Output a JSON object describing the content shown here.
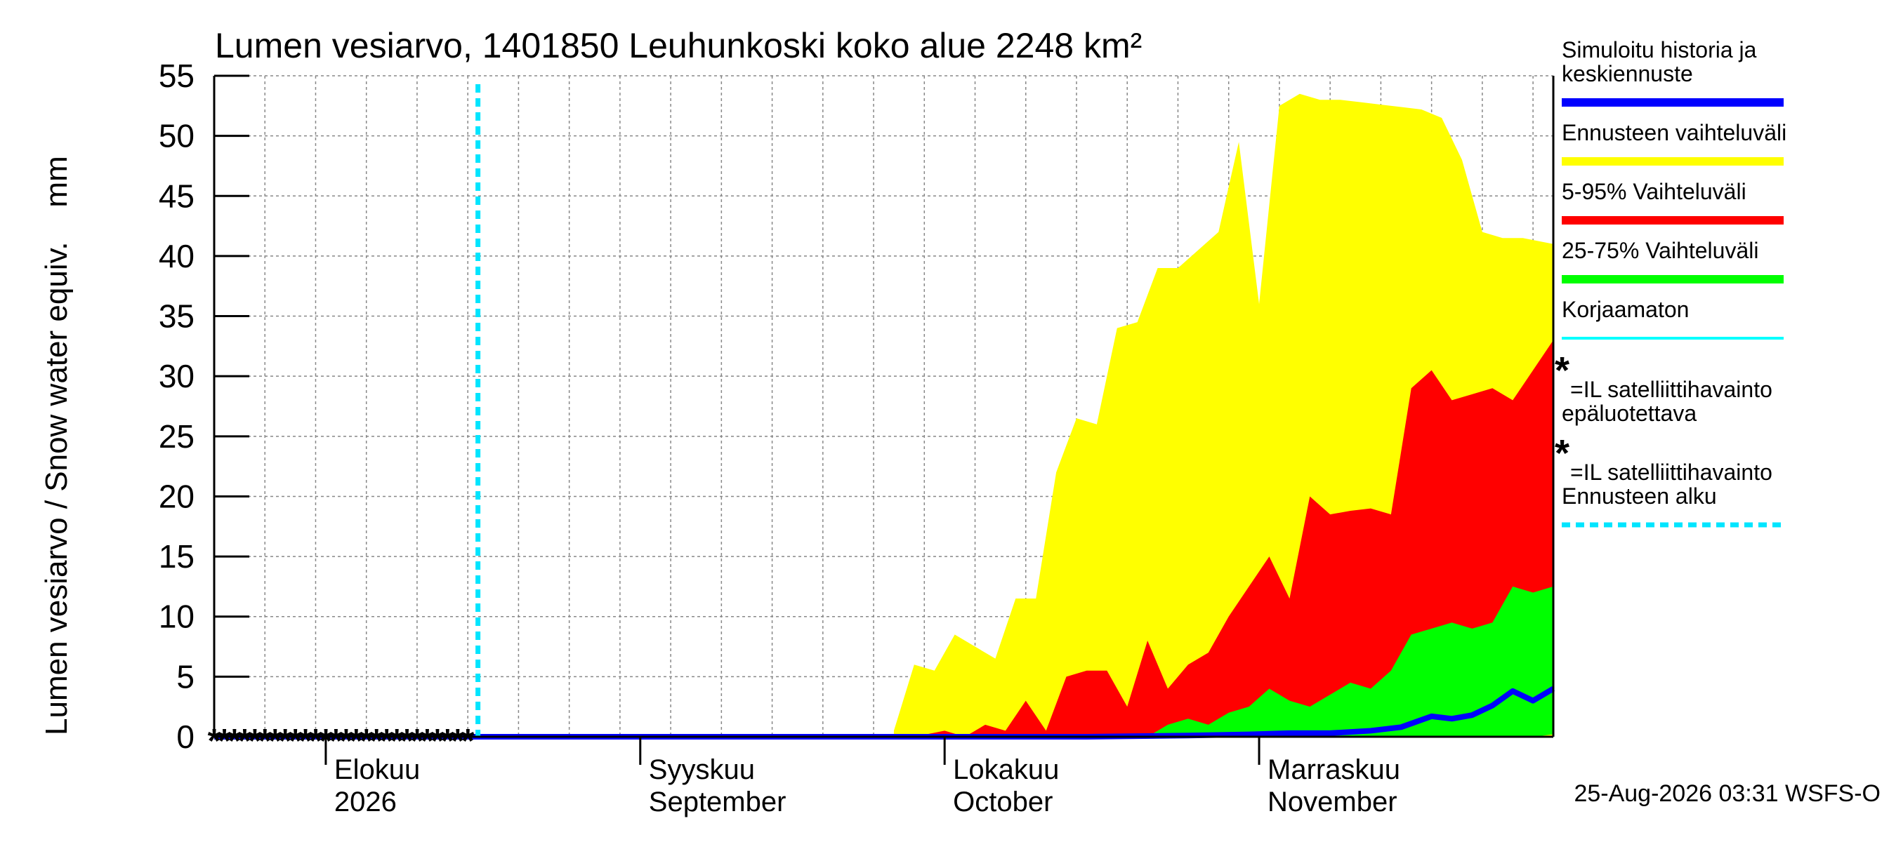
{
  "chart_data": {
    "type": "area",
    "title": "Lumen vesiarvo, 1401850 Leuhunkoski koko alue 2248 km²",
    "ylabel": "Lumen vesiarvo / Snow water equiv.    mm",
    "ylim": [
      0,
      55
    ],
    "yticks": [
      0,
      5,
      10,
      15,
      20,
      25,
      30,
      35,
      40,
      45,
      50,
      55
    ],
    "x_range": [
      "2026-07-21",
      "2026-11-30"
    ],
    "forecast_start": "2026-08-16",
    "grid": true,
    "legend_position": "right",
    "month_labels": [
      {
        "date": "2026-08-01",
        "line1": "Elokuu",
        "line2": "2026"
      },
      {
        "date": "2026-09-01",
        "line1": "Syyskuu",
        "line2": "September"
      },
      {
        "date": "2026-10-01",
        "line1": "Lokakuu",
        "line2": "October"
      },
      {
        "date": "2026-11-01",
        "line1": "Marraskuu",
        "line2": "November"
      }
    ],
    "footer": "25-Aug-2026 03:31 WSFS-O",
    "colors": {
      "history": "#0000ff",
      "range_full": "#ffff00",
      "range_5_95": "#ff0000",
      "range_25_75": "#00ff00",
      "uncorrected": "#00ffff",
      "forecast_start": "#00e5ff",
      "obs_reliable": "#ff0000",
      "obs_unreliable": "#000000"
    },
    "legend": [
      {
        "label1": "Simuloitu historia ja",
        "label2": "keskiennuste",
        "key": "history"
      },
      {
        "label1": "Ennusteen vaihteluväli",
        "key": "range_full"
      },
      {
        "label1": "5-95% Vaihteluväli",
        "key": "range_5_95"
      },
      {
        "label1": "25-75% Vaihteluväli",
        "key": "range_25_75"
      },
      {
        "label1": "Korjaamaton",
        "key": "uncorrected"
      },
      {
        "label1": "=IL satelliittihavainto",
        "key": "obs_reliable",
        "marker": "*"
      },
      {
        "label1": "epäluotettava",
        "key": "text_only"
      },
      {
        "label1": "=IL satelliittihavainto",
        "key": "obs_unreliable",
        "marker": "*"
      },
      {
        "label1": "Ennusteen alku",
        "key": "forecast_start"
      }
    ],
    "range_full": {
      "x": [
        "2026-09-26",
        "2026-09-28",
        "2026-09-30",
        "2026-10-02",
        "2026-10-04",
        "2026-10-06",
        "2026-10-08",
        "2026-10-10",
        "2026-10-12",
        "2026-10-14",
        "2026-10-16",
        "2026-10-18",
        "2026-10-20",
        "2026-10-22",
        "2026-10-24",
        "2026-10-26",
        "2026-10-28",
        "2026-10-30",
        "2026-11-01",
        "2026-11-03",
        "2026-11-05",
        "2026-11-07",
        "2026-11-09",
        "2026-11-11",
        "2026-11-13",
        "2026-11-15",
        "2026-11-17",
        "2026-11-19",
        "2026-11-21",
        "2026-11-23",
        "2026-11-25",
        "2026-11-27",
        "2026-11-30"
      ],
      "high": [
        0.5,
        6,
        5.5,
        8.5,
        7.5,
        6.5,
        11.5,
        11.5,
        22,
        26.5,
        26,
        34,
        34.5,
        39,
        39,
        40.5,
        42,
        49.5,
        36,
        52.5,
        53.5,
        53,
        53,
        52.8,
        52.6,
        52.4,
        52.2,
        51.5,
        48,
        42,
        41.5,
        41.5,
        41
      ],
      "low": [
        0,
        0,
        0,
        0,
        0,
        0,
        0,
        0,
        0,
        0,
        0,
        0,
        0,
        0,
        0,
        0,
        0,
        0,
        0,
        0,
        0,
        0,
        0,
        0,
        0,
        0,
        0,
        0,
        0,
        0,
        0,
        0,
        0
      ]
    },
    "range_5_95": {
      "x": [
        "2026-09-28",
        "2026-10-01",
        "2026-10-03",
        "2026-10-05",
        "2026-10-07",
        "2026-10-09",
        "2026-10-11",
        "2026-10-13",
        "2026-10-15",
        "2026-10-17",
        "2026-10-19",
        "2026-10-21",
        "2026-10-23",
        "2026-10-25",
        "2026-10-27",
        "2026-10-29",
        "2026-10-31",
        "2026-11-02",
        "2026-11-04",
        "2026-11-06",
        "2026-11-08",
        "2026-11-10",
        "2026-11-12",
        "2026-11-14",
        "2026-11-16",
        "2026-11-18",
        "2026-11-20",
        "2026-11-22",
        "2026-11-24",
        "2026-11-26",
        "2026-11-28",
        "2026-11-30"
      ],
      "high": [
        0,
        0.5,
        0,
        1,
        0.5,
        3,
        0.5,
        5,
        5.5,
        5.5,
        2.5,
        8,
        4,
        6,
        7,
        10,
        12.5,
        15,
        11.5,
        20,
        18.5,
        18.8,
        19,
        18.5,
        29,
        30.5,
        28,
        28.5,
        29,
        28,
        30.5,
        33
      ],
      "low": [
        0,
        0,
        0,
        0,
        0,
        0,
        0,
        0,
        0,
        0,
        0,
        0,
        0,
        0,
        0,
        0,
        0,
        0,
        0,
        0,
        0,
        0,
        0,
        0,
        0,
        0,
        0,
        0,
        0,
        0,
        0,
        0.8
      ]
    },
    "range_25_75": {
      "x": [
        "2026-10-21",
        "2026-10-23",
        "2026-10-25",
        "2026-10-27",
        "2026-10-29",
        "2026-10-31",
        "2026-11-02",
        "2026-11-04",
        "2026-11-06",
        "2026-11-08",
        "2026-11-10",
        "2026-11-12",
        "2026-11-14",
        "2026-11-16",
        "2026-11-18",
        "2026-11-20",
        "2026-11-22",
        "2026-11-24",
        "2026-11-26",
        "2026-11-28",
        "2026-11-30"
      ],
      "high": [
        0,
        1,
        1.5,
        1,
        2,
        2.5,
        4,
        3,
        2.5,
        3.5,
        4.5,
        4,
        5.5,
        8.5,
        9,
        9.5,
        9,
        9.5,
        12.5,
        12,
        12.5
      ],
      "low": [
        0,
        0,
        0,
        0,
        0,
        0,
        0,
        0,
        0,
        0,
        0,
        0,
        0,
        0,
        0,
        0,
        0,
        0,
        0,
        0,
        0.2
      ]
    },
    "history": {
      "x": [
        "2026-07-21",
        "2026-08-16",
        "2026-09-15",
        "2026-10-15",
        "2026-10-25",
        "2026-10-31",
        "2026-11-04",
        "2026-11-08",
        "2026-11-12",
        "2026-11-15",
        "2026-11-18",
        "2026-11-20",
        "2026-11-22",
        "2026-11-24",
        "2026-11-26",
        "2026-11-28",
        "2026-11-29",
        "2026-11-30"
      ],
      "y": [
        0,
        0,
        0,
        0,
        0.1,
        0.2,
        0.3,
        0.3,
        0.5,
        0.8,
        1.7,
        1.5,
        1.8,
        2.6,
        3.8,
        3.0,
        3.5,
        4.0
      ]
    },
    "obs_reliable": [
      "2026-07-21",
      "2026-07-22",
      "2026-07-23",
      "2026-07-24",
      "2026-07-25",
      "2026-07-26",
      "2026-07-31",
      "2026-08-01",
      "2026-08-02",
      "2026-08-03",
      "2026-08-04",
      "2026-08-05",
      "2026-08-06",
      "2026-08-08",
      "2026-08-09",
      "2026-08-10",
      "2026-08-11",
      "2026-08-15"
    ],
    "obs_unreliable": [
      "2026-07-27",
      "2026-07-28",
      "2026-07-29",
      "2026-07-30",
      "2026-08-07",
      "2026-08-12",
      "2026-08-13",
      "2026-08-14"
    ]
  }
}
